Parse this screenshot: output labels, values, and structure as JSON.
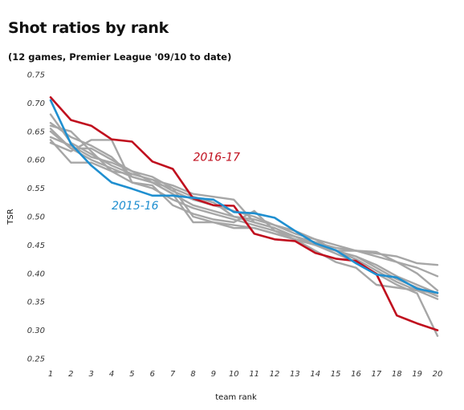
{
  "chart_data": {
    "type": "line",
    "title": "Shot ratios by rank",
    "subtitle": "(12 games, Premier League '09/10 to date)",
    "xlabel": "team rank",
    "ylabel": "TSR",
    "x": [
      1,
      2,
      3,
      4,
      5,
      6,
      7,
      8,
      9,
      10,
      11,
      12,
      13,
      14,
      15,
      16,
      17,
      18,
      19,
      20
    ],
    "xticks": [
      "1",
      "2",
      "3",
      "4",
      "5",
      "6",
      "7",
      "8",
      "9",
      "10",
      "11",
      "12",
      "13",
      "14",
      "15",
      "16",
      "17",
      "18",
      "19",
      "20"
    ],
    "ylim": [
      0.25,
      0.75
    ],
    "yticks": [
      "0.25",
      "0.30",
      "0.35",
      "0.40",
      "0.45",
      "0.50",
      "0.55",
      "0.60",
      "0.65",
      "0.70",
      "0.75"
    ],
    "colors": {
      "other": "#a6a6a6",
      "s2016": "#c00f1e",
      "s2015": "#1f8fd0"
    },
    "series": [
      {
        "values": [
          0.68,
          0.63,
          0.61,
          0.59,
          0.575,
          0.565,
          0.545,
          0.53,
          0.52,
          0.51,
          0.5,
          0.485,
          0.47,
          0.46,
          0.45,
          0.44,
          0.43,
          0.42,
          0.41,
          0.395
        ]
      },
      {
        "values": [
          0.665,
          0.64,
          0.625,
          0.605,
          0.57,
          0.56,
          0.54,
          0.52,
          0.51,
          0.5,
          0.49,
          0.48,
          0.465,
          0.455,
          0.445,
          0.44,
          0.435,
          0.43,
          0.418,
          0.415
        ]
      },
      {
        "values": [
          0.66,
          0.65,
          0.615,
          0.58,
          0.56,
          0.55,
          0.53,
          0.515,
          0.505,
          0.495,
          0.485,
          0.475,
          0.46,
          0.45,
          0.44,
          0.43,
          0.41,
          0.39,
          0.375,
          0.36
        ]
      },
      {
        "values": [
          0.655,
          0.62,
          0.6,
          0.585,
          0.57,
          0.56,
          0.55,
          0.5,
          0.49,
          0.485,
          0.48,
          0.47,
          0.46,
          0.45,
          0.44,
          0.425,
          0.405,
          0.385,
          0.37,
          0.355
        ]
      },
      {
        "values": [
          0.635,
          0.595,
          0.595,
          0.58,
          0.575,
          0.565,
          0.555,
          0.54,
          0.535,
          0.53,
          0.49,
          0.48,
          0.465,
          0.455,
          0.44,
          0.43,
          0.415,
          0.395,
          0.38,
          0.365
        ]
      },
      {
        "values": [
          0.63,
          0.615,
          0.635,
          0.635,
          0.56,
          0.555,
          0.52,
          0.505,
          0.495,
          0.49,
          0.51,
          0.475,
          0.465,
          0.45,
          0.435,
          0.42,
          0.4,
          0.38,
          0.365,
          0.29
        ]
      },
      {
        "values": [
          0.65,
          0.62,
          0.62,
          0.6,
          0.58,
          0.56,
          0.54,
          0.49,
          0.49,
          0.48,
          0.48,
          0.47,
          0.46,
          0.44,
          0.42,
          0.41,
          0.38,
          0.375,
          0.37,
          0.365
        ]
      },
      {
        "values": [
          0.64,
          0.625,
          0.605,
          0.595,
          0.58,
          0.57,
          0.55,
          0.535,
          0.525,
          0.5,
          0.495,
          0.485,
          0.475,
          0.46,
          0.44,
          0.44,
          0.438,
          0.42,
          0.4,
          0.37
        ]
      },
      {
        "name": "2016-17",
        "values": [
          0.71,
          0.67,
          0.66,
          0.636,
          0.632,
          0.597,
          0.584,
          0.532,
          0.52,
          0.519,
          0.47,
          0.46,
          0.457,
          0.436,
          0.426,
          0.422,
          0.399,
          0.326,
          0.312,
          0.3
        ]
      },
      {
        "name": "2015-16",
        "values": [
          0.705,
          0.628,
          0.59,
          0.56,
          0.549,
          0.537,
          0.537,
          0.533,
          0.53,
          0.508,
          0.506,
          0.498,
          0.475,
          0.453,
          0.441,
          0.418,
          0.398,
          0.393,
          0.373,
          0.366
        ]
      }
    ],
    "annotations": [
      {
        "text": "2016-17",
        "series": "2016-17",
        "color": "#c00f1e",
        "x": 8.0,
        "y": 0.605
      },
      {
        "text": "2015-16",
        "series": "2015-16",
        "color": "#1f8fd0",
        "x": 4.0,
        "y": 0.52
      }
    ],
    "grid": false,
    "legend": "none"
  }
}
